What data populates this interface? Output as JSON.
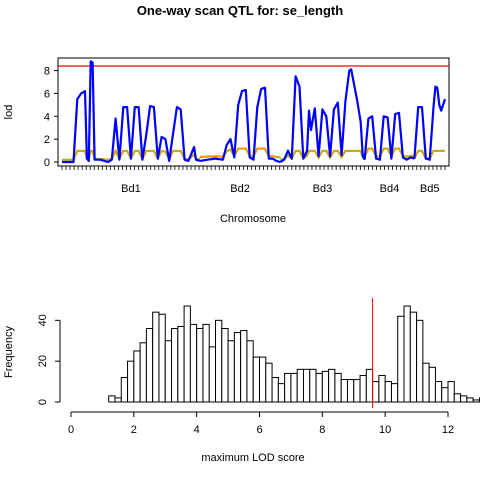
{
  "title": "One-way scan QTL for: se_length",
  "chart_data": [
    {
      "type": "line",
      "xlabel": "Chromosome",
      "ylabel": "lod",
      "ylim": [
        0,
        9.1
      ],
      "yticks": [
        0,
        2,
        4,
        6,
        8
      ],
      "threshold": 8.4,
      "colors": {
        "threshold": "#ff0000",
        "lod": "#0000ff",
        "green": "#00cc00",
        "orange": "#ff9900"
      },
      "chromosomes": [
        {
          "label": "Bd1",
          "start": 0.0,
          "end": 0.36,
          "peaks": [
            [
              0.0,
              0.0
            ],
            [
              0.03,
              0.0
            ],
            [
              0.04,
              5.5
            ],
            [
              0.05,
              6.0
            ],
            [
              0.06,
              6.2
            ],
            [
              0.065,
              0.3
            ],
            [
              0.07,
              0.1
            ],
            [
              0.075,
              8.8
            ],
            [
              0.08,
              8.7
            ],
            [
              0.085,
              0.2
            ],
            [
              0.1,
              0.2
            ],
            [
              0.12,
              0.0
            ],
            [
              0.13,
              0.2
            ],
            [
              0.14,
              3.8
            ],
            [
              0.15,
              0.2
            ],
            [
              0.16,
              4.8
            ],
            [
              0.17,
              4.8
            ],
            [
              0.18,
              0.3
            ],
            [
              0.19,
              4.8
            ],
            [
              0.2,
              4.8
            ],
            [
              0.21,
              0.2
            ],
            [
              0.22,
              2.4
            ],
            [
              0.23,
              4.9
            ],
            [
              0.24,
              4.8
            ],
            [
              0.25,
              0.3
            ],
            [
              0.26,
              2.2
            ],
            [
              0.27,
              2.0
            ],
            [
              0.28,
              0.1
            ],
            [
              0.29,
              2.5
            ],
            [
              0.3,
              4.8
            ],
            [
              0.31,
              4.6
            ],
            [
              0.32,
              0.2
            ],
            [
              0.33,
              0.1
            ],
            [
              0.34,
              0.9
            ],
            [
              0.345,
              1.3
            ],
            [
              0.35,
              0.2
            ],
            [
              0.36,
              0.1
            ]
          ]
        },
        {
          "label": "Bd2",
          "start": 0.36,
          "end": 0.57,
          "peaks": [
            [
              0.36,
              0.1
            ],
            [
              0.38,
              0.2
            ],
            [
              0.4,
              0.3
            ],
            [
              0.42,
              0.2
            ],
            [
              0.43,
              1.5
            ],
            [
              0.44,
              2.0
            ],
            [
              0.45,
              0.4
            ],
            [
              0.46,
              5.0
            ],
            [
              0.47,
              6.2
            ],
            [
              0.48,
              6.3
            ],
            [
              0.49,
              0.4
            ],
            [
              0.5,
              0.2
            ],
            [
              0.51,
              4.8
            ],
            [
              0.52,
              6.4
            ],
            [
              0.53,
              6.5
            ],
            [
              0.54,
              0.3
            ],
            [
              0.55,
              0.3
            ],
            [
              0.56,
              0.1
            ],
            [
              0.57,
              0.0
            ]
          ]
        },
        {
          "label": "Bd3",
          "start": 0.57,
          "end": 0.79,
          "peaks": [
            [
              0.57,
              0.0
            ],
            [
              0.58,
              0.2
            ],
            [
              0.59,
              1.0
            ],
            [
              0.6,
              0.3
            ],
            [
              0.61,
              7.5
            ],
            [
              0.62,
              6.6
            ],
            [
              0.63,
              0.3
            ],
            [
              0.64,
              1.0
            ],
            [
              0.645,
              4.5
            ],
            [
              0.65,
              2.8
            ],
            [
              0.66,
              4.7
            ],
            [
              0.67,
              0.5
            ],
            [
              0.68,
              4.6
            ],
            [
              0.69,
              4.0
            ],
            [
              0.7,
              0.5
            ],
            [
              0.71,
              4.6
            ],
            [
              0.72,
              5.2
            ],
            [
              0.73,
              0.6
            ],
            [
              0.74,
              5.3
            ],
            [
              0.75,
              8.0
            ],
            [
              0.755,
              8.1
            ],
            [
              0.77,
              5.5
            ],
            [
              0.78,
              3.5
            ],
            [
              0.785,
              0.6
            ],
            [
              0.79,
              0.2
            ]
          ]
        },
        {
          "label": "Bd4",
          "start": 0.79,
          "end": 0.92,
          "peaks": [
            [
              0.79,
              0.2
            ],
            [
              0.8,
              3.8
            ],
            [
              0.81,
              4.0
            ],
            [
              0.82,
              0.3
            ],
            [
              0.83,
              0.2
            ],
            [
              0.84,
              4.0
            ],
            [
              0.85,
              3.9
            ],
            [
              0.86,
              0.3
            ],
            [
              0.87,
              4.2
            ],
            [
              0.88,
              4.3
            ],
            [
              0.89,
              0.4
            ],
            [
              0.9,
              0.2
            ],
            [
              0.91,
              0.4
            ],
            [
              0.92,
              0.3
            ]
          ]
        },
        {
          "label": "Bd5",
          "start": 0.92,
          "end": 1.0,
          "peaks": [
            [
              0.92,
              0.3
            ],
            [
              0.93,
              4.8
            ],
            [
              0.94,
              4.8
            ],
            [
              0.95,
              0.3
            ],
            [
              0.96,
              0.2
            ],
            [
              0.97,
              4.8
            ],
            [
              0.975,
              6.6
            ],
            [
              0.98,
              6.5
            ],
            [
              0.985,
              5.0
            ],
            [
              0.99,
              4.5
            ],
            [
              1.0,
              5.5
            ]
          ]
        }
      ]
    },
    {
      "type": "bar",
      "xlabel": "maximum LOD score",
      "ylabel": "Frequency",
      "xlim": [
        0,
        12
      ],
      "ylim": [
        0,
        48
      ],
      "xticks": [
        0,
        2,
        4,
        6,
        8,
        10,
        12
      ],
      "yticks": [
        0,
        20,
        40
      ],
      "bin_start": 1.2,
      "bin_width": 0.2,
      "threshold": 9.6,
      "colors": {
        "threshold": "#ff0000",
        "bar_fill": "#ffffff",
        "bar_edge": "#000000"
      },
      "values": [
        3,
        2,
        12,
        20,
        25,
        29,
        36,
        44,
        43,
        30,
        36,
        37,
        47,
        38,
        36,
        38,
        27,
        40,
        36,
        30,
        34,
        35,
        30,
        22,
        22,
        19,
        12,
        9,
        14,
        14,
        16,
        16,
        16,
        14,
        15,
        16,
        14,
        11,
        11,
        11,
        13,
        16,
        10,
        13,
        10,
        9,
        42,
        47,
        44,
        40,
        19,
        17,
        10,
        7,
        10,
        4,
        3,
        2,
        1,
        2,
        0,
        1
      ]
    }
  ]
}
